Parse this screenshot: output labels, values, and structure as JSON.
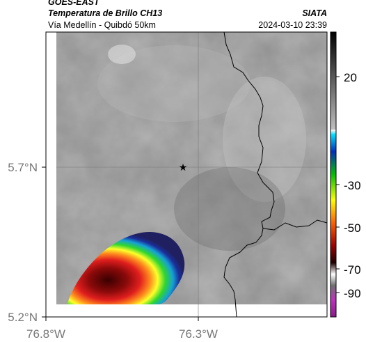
{
  "header": {
    "satellite": "GOES-EAST",
    "product": "Temperatura de Brillo CH13",
    "region": "Vía Medellín - Quibdó 50km",
    "agency": "SIATA",
    "datetime": "2024-03-10 23:39"
  },
  "axes": {
    "lat_labels": [
      "5.7°N",
      "5.2°N"
    ],
    "lon_labels": [
      "76.8°W",
      "76.3°W"
    ]
  },
  "colorbar": {
    "tick_labels": [
      "20",
      "-30",
      "-50",
      "-70",
      "-90"
    ]
  },
  "marker": {
    "type": "star",
    "color": "#000000"
  }
}
